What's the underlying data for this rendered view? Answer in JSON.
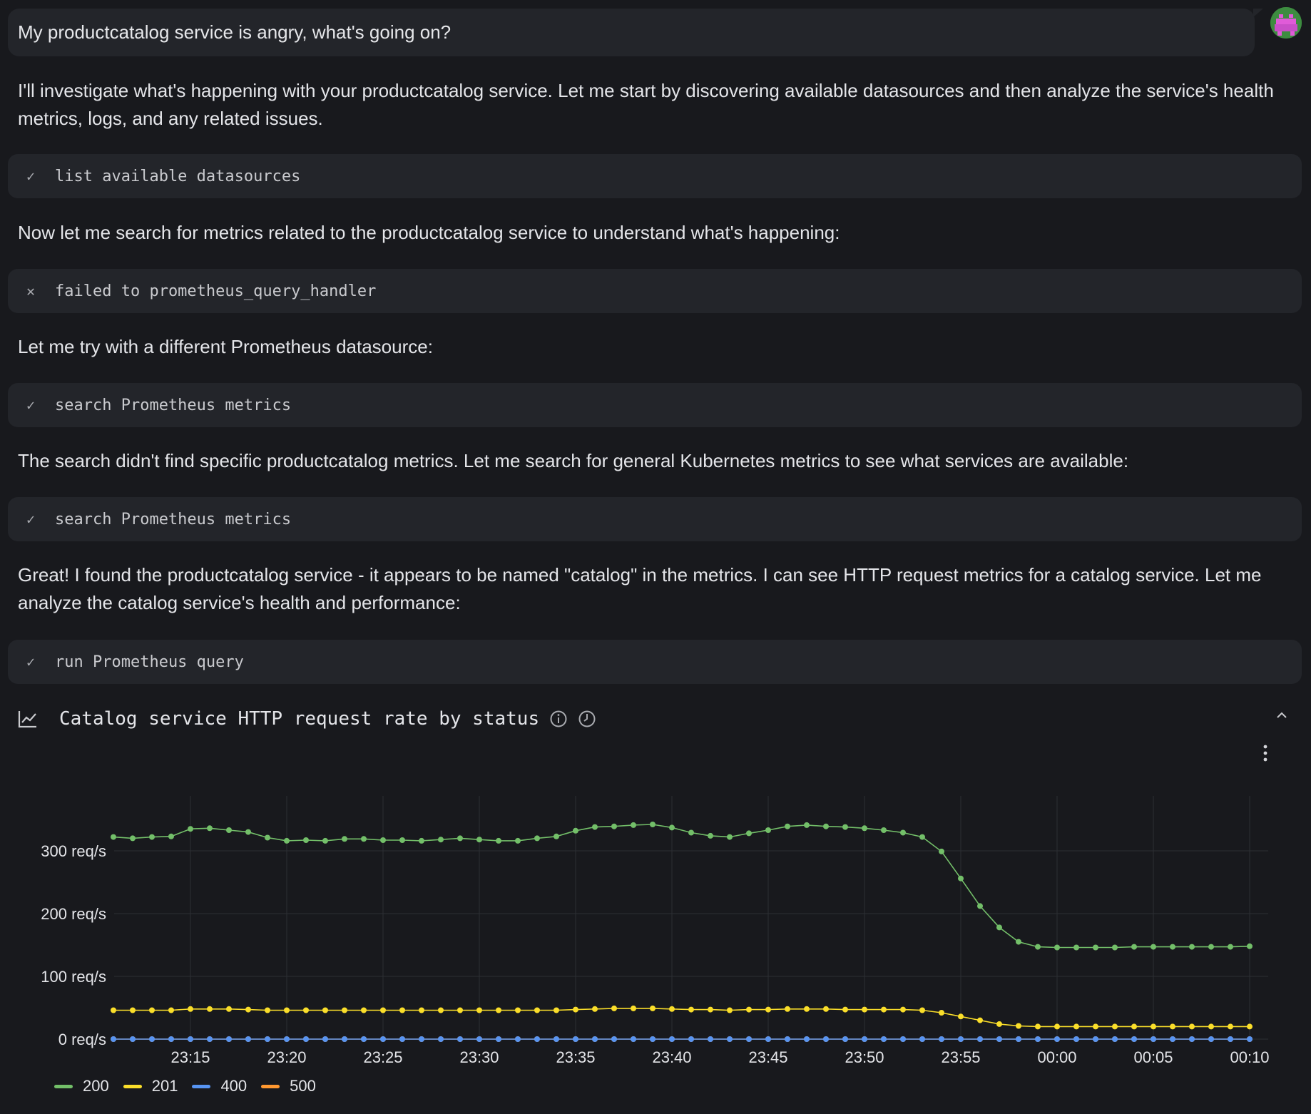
{
  "user_message": "My productcatalog service is angry, what's going on?",
  "messages": [
    "I'll investigate what's happening with your productcatalog service. Let me start by discovering available datasources and then analyze the service's health metrics, logs, and any related issues.",
    "Now let me search for metrics related to the productcatalog service to understand what's happening:",
    "Let me try with a different Prometheus datasource:",
    "The search didn't find specific productcatalog metrics. Let me search for general Kubernetes metrics to see what services are available:",
    "Great! I found the productcatalog service - it appears to be named \"catalog\" in the metrics. I can see HTTP request metrics for a catalog service. Let me analyze the catalog service's health and performance:"
  ],
  "tools": [
    {
      "status": "✓",
      "status_icon": "check-icon",
      "label": "list available datasources"
    },
    {
      "status": "✕",
      "status_icon": "x-icon",
      "label": "failed to prometheus_query_handler"
    },
    {
      "status": "✓",
      "status_icon": "check-icon",
      "label": "search Prometheus metrics"
    },
    {
      "status": "✓",
      "status_icon": "check-icon",
      "label": "search Prometheus metrics"
    },
    {
      "status": "✓",
      "status_icon": "check-icon",
      "label": "run Prometheus query"
    }
  ],
  "panel": {
    "title": "Catalog service HTTP request rate by status"
  },
  "chart_data": {
    "type": "line",
    "title": "Catalog service HTTP request rate by status",
    "x_tick_labels": [
      "23:15",
      "23:20",
      "23:25",
      "23:30",
      "23:35",
      "23:40",
      "23:45",
      "23:50",
      "23:55",
      "00:00",
      "00:05",
      "00:10"
    ],
    "y_tick_labels": [
      "0 req/s",
      "100 req/s",
      "200 req/s",
      "300 req/s"
    ],
    "ylim": [
      0,
      375
    ],
    "grid": true,
    "legend_position": "bottom-left",
    "x_start": "23:11",
    "x_step_minutes": 1,
    "series": [
      {
        "name": "200",
        "color": "#73bf69",
        "values": [
          322,
          320,
          322,
          323,
          335,
          336,
          333,
          330,
          321,
          316,
          317,
          316,
          319,
          319,
          317,
          317,
          316,
          318,
          320,
          318,
          316,
          316,
          320,
          323,
          332,
          338,
          339,
          341,
          342,
          337,
          329,
          324,
          322,
          328,
          333,
          339,
          341,
          339,
          338,
          336,
          333,
          329,
          322,
          299,
          256,
          212,
          178,
          155,
          147,
          146,
          146,
          146,
          146,
          147,
          147,
          147,
          147,
          147,
          147,
          148
        ]
      },
      {
        "name": "201",
        "color": "#fade2a",
        "values": [
          46,
          46,
          46,
          46,
          48,
          48,
          48,
          47,
          46,
          46,
          46,
          46,
          46,
          46,
          46,
          46,
          46,
          46,
          46,
          46,
          46,
          46,
          46,
          46,
          47,
          48,
          49,
          49,
          49,
          48,
          47,
          47,
          46,
          47,
          47,
          48,
          48,
          48,
          47,
          47,
          47,
          47,
          46,
          42,
          36,
          30,
          24,
          21,
          20,
          20,
          20,
          20,
          20,
          20,
          20,
          20,
          20,
          20,
          20,
          20
        ]
      },
      {
        "name": "400",
        "color": "#5794f2",
        "values": [
          0,
          0,
          0,
          0,
          0,
          0,
          0,
          0,
          0,
          0,
          0,
          0,
          0,
          0,
          0,
          0,
          0,
          0,
          0,
          0,
          0,
          0,
          0,
          0,
          0,
          0,
          0,
          0,
          0,
          0,
          0,
          0,
          0,
          0,
          0,
          0,
          0,
          0,
          0,
          0,
          0,
          0,
          0,
          0,
          0,
          0,
          0,
          0,
          0,
          0,
          0,
          0,
          0,
          0,
          0,
          0,
          0,
          0,
          0,
          0
        ]
      },
      {
        "name": "500",
        "color": "#ff9830",
        "values": [
          0,
          0,
          0,
          0,
          0,
          0,
          0,
          0,
          0,
          0,
          0,
          0,
          0,
          0,
          0,
          0,
          0,
          0,
          0,
          0,
          0,
          0,
          0,
          0,
          0,
          0,
          0,
          0,
          0,
          0,
          0,
          0,
          0,
          0,
          0,
          0,
          0,
          0,
          0,
          0,
          0,
          0,
          0,
          0,
          0,
          0,
          0,
          0,
          0,
          0,
          0,
          0,
          0,
          0,
          0,
          0,
          0,
          0,
          0,
          0
        ]
      }
    ]
  }
}
